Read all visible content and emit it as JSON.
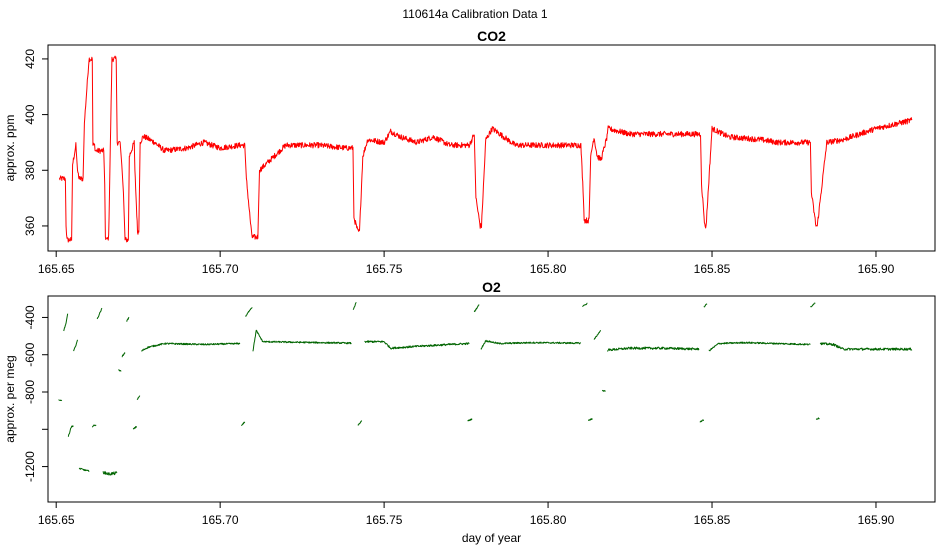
{
  "page_title": "110614a   Calibration Data 1",
  "chart_data": [
    {
      "type": "line",
      "title": "CO2",
      "xlabel": "",
      "ylabel": "approx. ppm",
      "xlim": [
        165.6475,
        165.918
      ],
      "ylim": [
        351,
        425
      ],
      "x_ticks": [
        165.65,
        165.7,
        165.75,
        165.8,
        165.85,
        165.9
      ],
      "x_tick_labels": [
        "165.65",
        "165.70",
        "165.75",
        "165.80",
        "165.85",
        "165.90"
      ],
      "y_ticks": [
        360,
        380,
        400,
        420
      ],
      "y_tick_labels": [
        "360",
        "380",
        "400",
        "420"
      ],
      "series": [
        {
          "color": "#ff0000",
          "noise": 1.0,
          "x": [
            165.651,
            165.6528,
            165.653,
            165.6533,
            165.6547,
            165.655,
            165.656,
            165.6565,
            165.657,
            165.6582,
            165.6586,
            165.66,
            165.6601,
            165.661,
            165.6612,
            165.6617,
            165.662,
            165.6645,
            165.6648,
            165.665,
            165.6655,
            165.666,
            165.667,
            165.6683,
            165.6686,
            165.6695,
            165.67,
            165.6705,
            165.671,
            165.672,
            165.6723,
            165.6738,
            165.674,
            165.6748,
            165.6752,
            165.6756,
            165.676,
            165.6765,
            165.677,
            165.68,
            165.683,
            165.69,
            165.695,
            165.7,
            165.706,
            165.7075,
            165.708,
            165.7095,
            165.7098,
            165.7115,
            165.712,
            165.72,
            165.73,
            165.738,
            165.7405,
            165.7408,
            165.742,
            165.7425,
            165.7435,
            165.745,
            165.75,
            165.752,
            165.755,
            165.76,
            165.765,
            165.77,
            165.776,
            165.7775,
            165.778,
            165.7793,
            165.7797,
            165.781,
            165.783,
            165.79,
            165.8,
            165.81,
            165.8108,
            165.811,
            165.8125,
            165.813,
            165.814,
            165.815,
            165.816,
            165.8162,
            165.818,
            165.8182,
            165.825,
            165.83,
            165.84,
            165.8465,
            165.8468,
            165.8478,
            165.8482,
            165.85,
            165.855,
            165.865,
            165.87,
            165.88,
            165.8803,
            165.8817,
            165.8821,
            165.885,
            165.89,
            165.9,
            165.911
          ],
          "y": [
            377,
            377,
            360,
            355,
            355,
            382,
            389,
            380,
            377,
            377,
            397,
            420,
            420,
            420,
            389,
            389,
            387,
            387,
            375,
            356,
            355,
            356,
            420,
            420,
            390,
            390,
            382,
            372,
            355,
            355,
            385,
            390,
            380,
            358,
            358,
            390,
            391,
            392,
            392,
            390,
            387,
            388,
            390,
            388,
            389,
            389,
            377,
            358,
            356,
            356,
            380,
            389,
            389,
            388,
            388,
            363,
            358,
            358,
            385,
            391,
            390,
            394,
            392,
            390,
            392,
            389,
            389,
            393,
            370,
            360,
            360,
            391,
            395,
            389,
            389,
            389,
            370,
            362,
            362,
            385,
            392,
            385,
            384,
            384,
            392,
            395,
            393,
            393,
            393,
            393,
            375,
            360,
            360,
            395,
            392,
            391,
            390,
            390,
            372,
            360,
            360,
            390,
            391,
            395,
            398
          ]
        }
      ]
    },
    {
      "type": "line",
      "title": "O2",
      "xlabel": "day of year",
      "ylabel": "approx. per meg",
      "xlim": [
        165.6475,
        165.918
      ],
      "ylim": [
        -1390,
        -285
      ],
      "x_ticks": [
        165.65,
        165.7,
        165.75,
        165.8,
        165.85,
        165.9
      ],
      "x_tick_labels": [
        "165.65",
        "165.70",
        "165.75",
        "165.80",
        "165.85",
        "165.90"
      ],
      "y_ticks": [
        -1200,
        -800,
        -400
      ],
      "y_tick_labels": [
        "-1200",
        "-800",
        "-400"
      ],
      "minor_y_ticks": [
        -1000,
        -600
      ],
      "minor_y_tick_labels": [
        "",
        "-600"
      ],
      "series": [
        {
          "color": "#006400",
          "noise": 2,
          "x": [
            165.6507,
            165.6517
          ],
          "y": [
            -842,
            -846
          ]
        },
        {
          "color": "#006400",
          "noise": 3,
          "x": [
            165.6523,
            165.653,
            165.6535
          ],
          "y": [
            -470,
            -430,
            -380
          ]
        },
        {
          "color": "#006400",
          "noise": 4,
          "x": [
            165.6537,
            165.6545,
            165.6552
          ],
          "y": [
            -1040,
            -990,
            -980
          ]
        },
        {
          "color": "#006400",
          "noise": 3,
          "x": [
            165.6553,
            165.656,
            165.6565
          ],
          "y": [
            -580,
            -550,
            -520
          ]
        },
        {
          "color": "#006400",
          "noise": 4,
          "x": [
            165.657,
            165.66
          ],
          "y": [
            -1210,
            -1225
          ]
        },
        {
          "color": "#006400",
          "noise": 4,
          "x": [
            165.661,
            165.6622
          ],
          "y": [
            -985,
            -975
          ]
        },
        {
          "color": "#006400",
          "noise": 3,
          "x": [
            165.6625,
            165.6632,
            165.664
          ],
          "y": [
            -410,
            -380,
            -350
          ]
        },
        {
          "color": "#006400",
          "noise": 8,
          "x": [
            165.6643,
            165.666,
            165.6685
          ],
          "y": [
            -1230,
            -1240,
            -1235
          ]
        },
        {
          "color": "#006400",
          "noise": 3,
          "x": [
            165.669,
            165.6698
          ],
          "y": [
            -680,
            -690
          ]
        },
        {
          "color": "#006400",
          "noise": 4,
          "x": [
            165.67,
            165.671
          ],
          "y": [
            -610,
            -590
          ]
        },
        {
          "color": "#006400",
          "noise": 3,
          "x": [
            165.6715,
            165.6722
          ],
          "y": [
            -420,
            -400
          ]
        },
        {
          "color": "#006400",
          "noise": 4,
          "x": [
            165.6735,
            165.6745
          ],
          "y": [
            -1000,
            -985
          ]
        },
        {
          "color": "#006400",
          "noise": 3,
          "x": [
            165.6747,
            165.6755
          ],
          "y": [
            -840,
            -820
          ]
        },
        {
          "color": "#006400",
          "noise": 4,
          "x": [
            165.676,
            165.678,
            165.683,
            165.695,
            165.706
          ],
          "y": [
            -580,
            -560,
            -540,
            -545,
            -540
          ]
        },
        {
          "color": "#006400",
          "noise": 3,
          "x": [
            165.7065,
            165.7075
          ],
          "y": [
            -980,
            -960
          ]
        },
        {
          "color": "#006400",
          "noise": 3,
          "x": [
            165.7078,
            165.709,
            165.7098
          ],
          "y": [
            -395,
            -360,
            -345
          ]
        },
        {
          "color": "#006400",
          "noise": 4,
          "x": [
            165.71,
            165.711,
            165.713,
            165.73,
            165.74
          ],
          "y": [
            -580,
            -470,
            -530,
            -535,
            -538
          ]
        },
        {
          "color": "#006400",
          "noise": 3,
          "x": [
            165.7405,
            165.7415
          ],
          "y": [
            -360,
            -320
          ]
        },
        {
          "color": "#006400",
          "noise": 3,
          "x": [
            165.742,
            165.7432
          ],
          "y": [
            -980,
            -955
          ]
        },
        {
          "color": "#006400",
          "noise": 5,
          "x": [
            165.744,
            165.75,
            165.752,
            165.756,
            165.76,
            165.77,
            165.776
          ],
          "y": [
            -530,
            -530,
            -565,
            -560,
            -555,
            -545,
            -540
          ]
        },
        {
          "color": "#006400",
          "noise": 3,
          "x": [
            165.7755,
            165.7768
          ],
          "y": [
            -955,
            -945
          ]
        },
        {
          "color": "#006400",
          "noise": 3,
          "x": [
            165.7775,
            165.779
          ],
          "y": [
            -370,
            -330
          ]
        },
        {
          "color": "#006400",
          "noise": 4,
          "x": [
            165.7795,
            165.781,
            165.785,
            165.795,
            165.81
          ],
          "y": [
            -570,
            -525,
            -540,
            -535,
            -538
          ]
        },
        {
          "color": "#006400",
          "noise": 3,
          "x": [
            165.8105,
            165.812
          ],
          "y": [
            -340,
            -325
          ]
        },
        {
          "color": "#006400",
          "noise": 4,
          "x": [
            165.8123,
            165.8135
          ],
          "y": [
            -950,
            -945
          ]
        },
        {
          "color": "#006400",
          "noise": 3,
          "x": [
            165.814,
            165.816
          ],
          "y": [
            -520,
            -470
          ]
        },
        {
          "color": "#006400",
          "noise": 3,
          "x": [
            165.8165,
            165.8175
          ],
          "y": [
            -792,
            -795
          ]
        },
        {
          "color": "#006400",
          "noise": 6,
          "x": [
            165.818,
            165.825,
            165.835,
            165.846
          ],
          "y": [
            -575,
            -565,
            -565,
            -570
          ]
        },
        {
          "color": "#006400",
          "noise": 3,
          "x": [
            165.8463,
            165.8475
          ],
          "y": [
            -960,
            -950
          ]
        },
        {
          "color": "#006400",
          "noise": 3,
          "x": [
            165.8475,
            165.8485
          ],
          "y": [
            -345,
            -325
          ]
        },
        {
          "color": "#006400",
          "noise": 4,
          "x": [
            165.849,
            165.852,
            165.86,
            165.87,
            165.88
          ],
          "y": [
            -580,
            -540,
            -535,
            -540,
            -545
          ]
        },
        {
          "color": "#006400",
          "noise": 3,
          "x": [
            165.88,
            165.8815
          ],
          "y": [
            -345,
            -320
          ]
        },
        {
          "color": "#006400",
          "noise": 3,
          "x": [
            165.8817,
            165.8828
          ],
          "y": [
            -945,
            -940
          ]
        },
        {
          "color": "#006400",
          "noise": 6,
          "x": [
            165.883,
            165.887,
            165.89,
            165.9,
            165.911
          ],
          "y": [
            -540,
            -545,
            -570,
            -570,
            -570
          ]
        }
      ]
    }
  ]
}
